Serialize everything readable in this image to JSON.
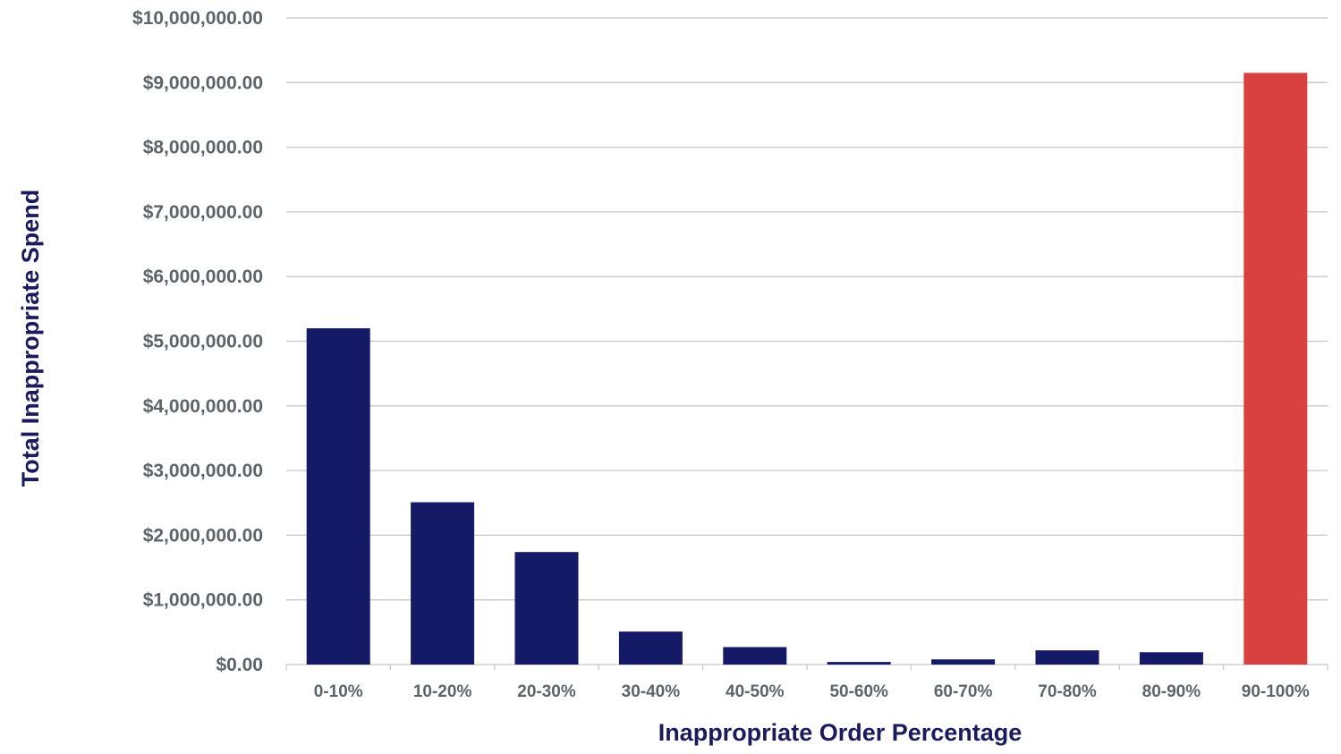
{
  "chart_data": {
    "type": "bar",
    "title": "",
    "xlabel": "Inappropriate Order Percentage",
    "ylabel": "Total Inappropriate Spend",
    "categories": [
      "0-10%",
      "10-20%",
      "20-30%",
      "30-40%",
      "40-50%",
      "50-60%",
      "60-70%",
      "70-80%",
      "80-90%",
      "90-100%"
    ],
    "values": [
      5200000,
      2510000,
      1740000,
      510000,
      270000,
      40000,
      80000,
      220000,
      190000,
      9150000
    ],
    "bar_colors": [
      "#141a66",
      "#141a66",
      "#141a66",
      "#141a66",
      "#141a66",
      "#141a66",
      "#141a66",
      "#141a66",
      "#141a66",
      "#d94040"
    ],
    "ylim": [
      0,
      10000000
    ],
    "yticks": [
      0,
      1000000,
      2000000,
      3000000,
      4000000,
      5000000,
      6000000,
      7000000,
      8000000,
      9000000,
      10000000
    ],
    "ytick_labels": [
      "$0.00",
      "$1,000,000.00",
      "$2,000,000.00",
      "$3,000,000.00",
      "$4,000,000.00",
      "$5,000,000.00",
      "$6,000,000.00",
      "$7,000,000.00",
      "$8,000,000.00",
      "$9,000,000.00",
      "$10,000,000.00"
    ],
    "grid": true,
    "legend": "none"
  },
  "colors": {
    "bar_primary": "#141a66",
    "bar_highlight": "#d94040",
    "gridline": "#c8c8c8",
    "tick_text": "#5c636b",
    "axis_title": "#1a1a5e"
  }
}
